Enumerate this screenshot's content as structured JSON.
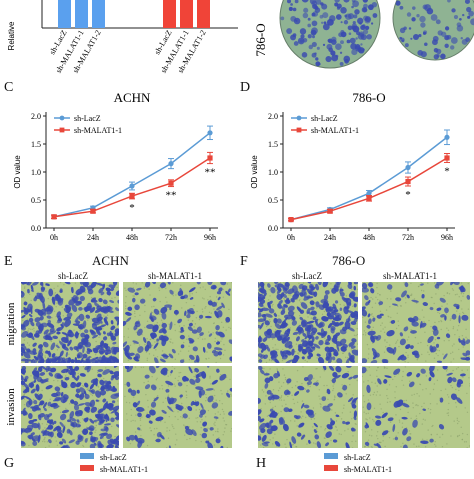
{
  "top": {
    "ylabel_fragment": "Relative",
    "bar_labels": [
      "sh-LacZ",
      "sh-MALAT1-1",
      "sh-MALAT1-2",
      "sh-LacZ",
      "sh-MALAT1-1",
      "sh-MALAT1-2"
    ],
    "colony_caption": "786-O"
  },
  "panels": {
    "c": "C",
    "d": "D",
    "e": "E",
    "f": "F",
    "g": "G",
    "h": "H"
  },
  "micro": {
    "e_title": "ACHN",
    "f_title": "786-O",
    "col_lacz": "sh-LacZ",
    "col_malat": "sh-MALAT1-1",
    "row_migration": "migration",
    "row_invasion": "invasion"
  },
  "bottom": {
    "g_legend": [
      "sh-LacZ",
      "sh-MALAT1-1"
    ],
    "h_legend": [
      "sh-LacZ",
      "sh-MALAT1-1"
    ]
  },
  "colors": {
    "lacz": "#5b9bd5",
    "malat": "#e8473b",
    "bar_blue": "#5aa0ee",
    "bar_red": "#f04438",
    "plate": "#8fb393",
    "stain": "#3a4bb0",
    "membrane": "#b4c98a"
  },
  "chart_data": [
    {
      "type": "line",
      "title": "ACHN",
      "xlabel": "",
      "ylabel": "OD value",
      "categories": [
        "0h",
        "24h",
        "48h",
        "72h",
        "96h"
      ],
      "ylim": [
        0,
        2.0
      ],
      "yticks": [
        "0.0",
        "0.5",
        "1.0",
        "1.5",
        "2.0"
      ],
      "legend_position": "top-left",
      "series": [
        {
          "name": "sh-LacZ",
          "values": [
            0.2,
            0.36,
            0.75,
            1.15,
            1.7
          ],
          "errors": [
            0.03,
            0.03,
            0.07,
            0.09,
            0.12
          ]
        },
        {
          "name": "sh-MALAT1-1",
          "values": [
            0.2,
            0.3,
            0.57,
            0.8,
            1.25
          ],
          "errors": [
            0.03,
            0.03,
            0.05,
            0.06,
            0.1
          ]
        }
      ],
      "annotations": [
        {
          "x": "48h",
          "text": "*"
        },
        {
          "x": "72h",
          "text": "**"
        },
        {
          "x": "96h",
          "text": "**"
        }
      ]
    },
    {
      "type": "line",
      "title": "786-O",
      "xlabel": "",
      "ylabel": "OD value",
      "categories": [
        "0h",
        "24h",
        "48h",
        "72h",
        "96h"
      ],
      "ylim": [
        0,
        2.0
      ],
      "yticks": [
        "0.0",
        "0.5",
        "1.0",
        "1.5",
        "2.0"
      ],
      "legend_position": "top-left",
      "series": [
        {
          "name": "sh-LacZ",
          "values": [
            0.15,
            0.33,
            0.62,
            1.08,
            1.62
          ],
          "errors": [
            0.02,
            0.03,
            0.05,
            0.1,
            0.13
          ]
        },
        {
          "name": "sh-MALAT1-1",
          "values": [
            0.15,
            0.3,
            0.53,
            0.83,
            1.25
          ],
          "errors": [
            0.02,
            0.03,
            0.05,
            0.08,
            0.08
          ]
        }
      ],
      "annotations": [
        {
          "x": "72h",
          "text": "*"
        },
        {
          "x": "96h",
          "text": "*"
        }
      ]
    }
  ]
}
